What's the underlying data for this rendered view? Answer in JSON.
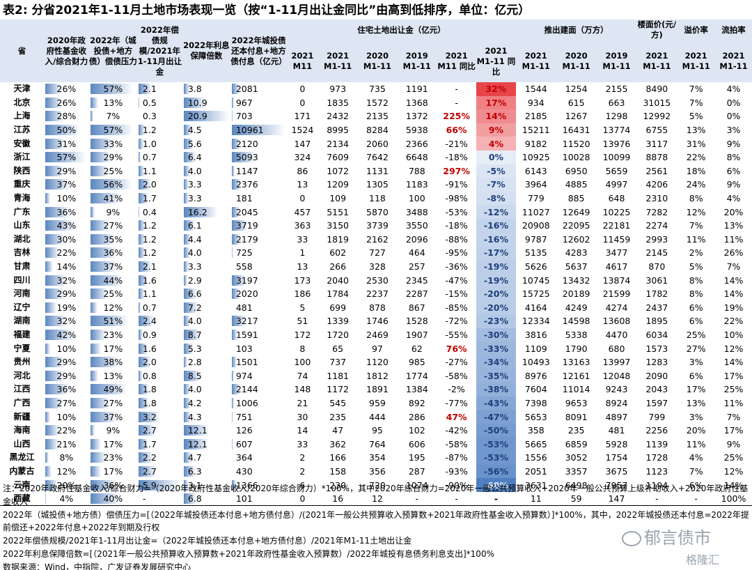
{
  "title": "表2:  分省2021年1-11月土地市场表现一览（按“1-11月出让金同比”由高到低排序，单位：亿元）",
  "headers": {
    "province": "省",
    "fund_ratio": "2020年政府性基金收入/综合财力",
    "debt_pressure": "2022年（城投债+地方债）偿债压力",
    "repay_ratio": "2022年偿债规模/2021年1-11月出让金",
    "interest_cover": "2022年利息保障倍数",
    "repay_amount": "2022年城投债还本付息+地方债付息（亿元）",
    "land_sales_group": "住宅土地出让金（亿元）",
    "launch_group": "推出建面（万方）",
    "floor_price": "楼面价(元/方)",
    "premium_rate": "溢价率",
    "fail_rate": "流拍率",
    "c2021m11": "2021 M11",
    "c2021m1_11": "2021 M1-11",
    "c2020m1_11": "2020 M1-11",
    "c2019m1_11": "2019 M1-11",
    "c_m11_yoy": "2021 M11 同比",
    "c_m1_11_yoy": "2021 M1-11 同比"
  },
  "rows": [
    {
      "p": "天津",
      "a": 26,
      "b": 57,
      "c": "2.1",
      "d": "3.8",
      "e": 2081,
      "f": "0",
      "g": "973",
      "h": "735",
      "i": "1191",
      "j": "-",
      "k": 32,
      "l": "1544",
      "m": "1254",
      "n": "2155",
      "o": "8490",
      "q": "7%",
      "r": "4%"
    },
    {
      "p": "北京",
      "a": 26,
      "b": 13,
      "c": "0.5",
      "d": "10.9",
      "e": 967,
      "f": "0",
      "g": "1835",
      "h": "1572",
      "i": "1368",
      "j": "-",
      "k": 17,
      "l": "934",
      "m": "615",
      "n": "663",
      "o": "31015",
      "q": "7%",
      "r": "0%"
    },
    {
      "p": "上海",
      "a": 28,
      "b": 7,
      "c": "0.3",
      "d": "20.9",
      "e": 703,
      "f": "171",
      "g": "2432",
      "h": "2135",
      "i": "1372",
      "j": "225%",
      "k": 14,
      "l": "2185",
      "m": "1267",
      "n": "1298",
      "o": "12992",
      "q": "5%",
      "r": "0%"
    },
    {
      "p": "江苏",
      "a": 50,
      "b": 57,
      "c": "1.2",
      "d": "4.5",
      "e": 10961,
      "f": "1524",
      "g": "8995",
      "h": "8284",
      "i": "5938",
      "j": "66%",
      "k": 9,
      "l": "15211",
      "m": "16431",
      "n": "13774",
      "o": "6755",
      "q": "13%",
      "r": "3%"
    },
    {
      "p": "安徽",
      "a": 31,
      "b": 33,
      "c": "1.0",
      "d": "5.6",
      "e": 2120,
      "f": "147",
      "g": "2134",
      "h": "2060",
      "i": "2366",
      "j": "-21%",
      "k": 4,
      "l": "9182",
      "m": "11520",
      "n": "13976",
      "o": "3117",
      "q": "31%",
      "r": "9%"
    },
    {
      "p": "浙江",
      "a": 57,
      "b": 29,
      "c": "0.7",
      "d": "6.4",
      "e": 5093,
      "f": "324",
      "g": "7609",
      "h": "7642",
      "i": "6648",
      "j": "-18%",
      "k": 0,
      "l": "10925",
      "m": "10028",
      "n": "10099",
      "o": "8878",
      "q": "22%",
      "r": "8%"
    },
    {
      "p": "陕西",
      "a": 29,
      "b": 25,
      "c": "1.1",
      "d": "4.0",
      "e": 1147,
      "f": "86",
      "g": "1072",
      "h": "1131",
      "i": "788",
      "j": "297%",
      "k": -5,
      "l": "6143",
      "m": "6950",
      "n": "5659",
      "o": "2561",
      "q": "18%",
      "r": "6%"
    },
    {
      "p": "重庆",
      "a": 37,
      "b": 56,
      "c": "2.0",
      "d": "3.3",
      "e": 2376,
      "f": "13",
      "g": "1209",
      "h": "1305",
      "i": "1183",
      "j": "-91%",
      "k": -7,
      "l": "3964",
      "m": "4885",
      "n": "4997",
      "o": "4206",
      "q": "24%",
      "r": "9%"
    },
    {
      "p": "青海",
      "a": 10,
      "b": 41,
      "c": "1.7",
      "d": "3.3",
      "e": 181,
      "f": "0",
      "g": "109",
      "h": "118",
      "i": "100",
      "j": "-98%",
      "k": -8,
      "l": "779",
      "m": "885",
      "n": "648",
      "o": "2310",
      "q": "8%",
      "r": "4%"
    },
    {
      "p": "广东",
      "a": 36,
      "b": 9,
      "c": "0.4",
      "d": "16.2",
      "e": 2045,
      "f": "457",
      "g": "5151",
      "h": "5870",
      "i": "3488",
      "j": "-53%",
      "k": -12,
      "l": "11027",
      "m": "12649",
      "n": "10225",
      "o": "7282",
      "q": "12%",
      "r": "20%"
    },
    {
      "p": "山东",
      "a": 43,
      "b": 27,
      "c": "1.2",
      "d": "6.1",
      "e": 3719,
      "f": "363",
      "g": "3150",
      "h": "3739",
      "i": "3550",
      "j": "-18%",
      "k": -16,
      "l": "20908",
      "m": "22095",
      "n": "22181",
      "o": "2274",
      "q": "7%",
      "r": "13%"
    },
    {
      "p": "湖北",
      "a": 30,
      "b": 35,
      "c": "1.2",
      "d": "4.4",
      "e": 2179,
      "f": "33",
      "g": "1819",
      "h": "2162",
      "i": "2096",
      "j": "-88%",
      "k": -16,
      "l": "9787",
      "m": "12602",
      "n": "11459",
      "o": "2993",
      "q": "11%",
      "r": "11%"
    },
    {
      "p": "吉林",
      "a": 22,
      "b": 36,
      "c": "1.2",
      "d": "4.0",
      "e": 725,
      "f": "1",
      "g": "602",
      "h": "727",
      "i": "464",
      "j": "-95%",
      "k": -17,
      "l": "5135",
      "m": "4283",
      "n": "3477",
      "o": "2145",
      "q": "2%",
      "r": "26%"
    },
    {
      "p": "甘肃",
      "a": 14,
      "b": 37,
      "c": "2.1",
      "d": "3.3",
      "e": 558,
      "f": "13",
      "g": "266",
      "h": "328",
      "i": "257",
      "j": "-36%",
      "k": -19,
      "l": "5626",
      "m": "5637",
      "n": "4617",
      "o": "870",
      "q": "5%",
      "r": "7%"
    },
    {
      "p": "四川",
      "a": 32,
      "b": 44,
      "c": "1.6",
      "d": "2.9",
      "e": 3197,
      "f": "173",
      "g": "2040",
      "h": "2530",
      "i": "2345",
      "j": "-47%",
      "k": -19,
      "l": "10745",
      "m": "13432",
      "n": "13874",
      "o": "3061",
      "q": "8%",
      "r": "14%"
    },
    {
      "p": "河南",
      "a": 29,
      "b": 25,
      "c": "1.1",
      "d": "6.6",
      "e": 2020,
      "f": "186",
      "g": "1784",
      "h": "2237",
      "i": "2287",
      "j": "-15%",
      "k": -20,
      "l": "15725",
      "m": "20189",
      "n": "21599",
      "o": "1782",
      "q": "8%",
      "r": "14%"
    },
    {
      "p": "辽宁",
      "a": 19,
      "b": 12,
      "c": "0.7",
      "d": "7.2",
      "e": 481,
      "f": "5",
      "g": "699",
      "h": "878",
      "i": "867",
      "j": "-85%",
      "k": -20,
      "l": "4164",
      "m": "4249",
      "n": "4274",
      "o": "2437",
      "q": "6%",
      "r": "19%"
    },
    {
      "p": "湖南",
      "a": 32,
      "b": 51,
      "c": "2.4",
      "d": "4.0",
      "e": 3217,
      "f": "51",
      "g": "1339",
      "h": "1746",
      "i": "1528",
      "j": "-72%",
      "k": -23,
      "l": "12334",
      "m": "14598",
      "n": "13608",
      "o": "1895",
      "q": "6%",
      "r": "22%"
    },
    {
      "p": "福建",
      "a": 42,
      "b": 23,
      "c": "0.9",
      "d": "8.7",
      "e": 1591,
      "f": "172",
      "g": "1720",
      "h": "2469",
      "i": "1907",
      "j": "-55%",
      "k": -30,
      "l": "3816",
      "m": "5338",
      "n": "4470",
      "o": "6034",
      "q": "25%",
      "r": "10%"
    },
    {
      "p": "宁夏",
      "a": 10,
      "b": 17,
      "c": "1.6",
      "d": "5.3",
      "e": 103,
      "f": "8",
      "g": "65",
      "h": "97",
      "i": "62",
      "j": "76%",
      "k": -33,
      "l": "1109",
      "m": "1790",
      "n": "680",
      "o": "1573",
      "q": "27%",
      "r": "12%"
    },
    {
      "p": "贵州",
      "a": 29,
      "b": 38,
      "c": "2.0",
      "d": "2.8",
      "e": 1501,
      "f": "100",
      "g": "737",
      "h": "1120",
      "i": "985",
      "j": "-27%",
      "k": -34,
      "l": "10493",
      "m": "13163",
      "n": "13997",
      "o": "1283",
      "q": "3%",
      "r": "14%"
    },
    {
      "p": "河北",
      "a": 29,
      "b": 13,
      "c": "0.8",
      "d": "8.5",
      "e": 974,
      "f": "74",
      "g": "1181",
      "h": "1812",
      "i": "1774",
      "j": "-58%",
      "k": -35,
      "l": "8976",
      "m": "12161",
      "n": "12048",
      "o": "2090",
      "q": "6%",
      "r": "17%"
    },
    {
      "p": "江西",
      "a": 36,
      "b": 49,
      "c": "1.8",
      "d": "4.0",
      "e": 2144,
      "f": "148",
      "g": "1172",
      "h": "1891",
      "i": "1384",
      "j": "-2%",
      "k": -38,
      "l": "7604",
      "m": "11014",
      "n": "9243",
      "o": "2043",
      "q": "17%",
      "r": "25%"
    },
    {
      "p": "广西",
      "a": 27,
      "b": 27,
      "c": "1.8",
      "d": "4.2",
      "e": 1006,
      "f": "21",
      "g": "545",
      "h": "959",
      "i": "892",
      "j": "-77%",
      "k": -43,
      "l": "7398",
      "m": "9653",
      "n": "8924",
      "o": "1597",
      "q": "13%",
      "r": "11%"
    },
    {
      "p": "新疆",
      "a": 10,
      "b": 37,
      "c": "3.2",
      "d": "4.3",
      "e": 751,
      "f": "30",
      "g": "235",
      "h": "444",
      "i": "286",
      "j": "47%",
      "k": -47,
      "l": "5653",
      "m": "8091",
      "n": "4897",
      "o": "799",
      "q": "3%",
      "r": "7%"
    },
    {
      "p": "海南",
      "a": 22,
      "b": 9,
      "c": "2.7",
      "d": "12.1",
      "e": 126,
      "f": "14",
      "g": "47",
      "h": "95",
      "i": "102",
      "j": "-42%",
      "k": -50,
      "l": "358",
      "m": "235",
      "n": "481",
      "o": "2256",
      "q": "20%",
      "r": "17%"
    },
    {
      "p": "山西",
      "a": 21,
      "b": 17,
      "c": "1.7",
      "d": "12.1",
      "e": 607,
      "f": "33",
      "g": "362",
      "h": "764",
      "i": "606",
      "j": "-58%",
      "k": -53,
      "l": "5665",
      "m": "6859",
      "n": "5928",
      "o": "1139",
      "q": "11%",
      "r": "9%"
    },
    {
      "p": "黑龙江",
      "a": 8,
      "b": 23,
      "c": "2.2",
      "d": "4.7",
      "e": 364,
      "f": "2",
      "g": "166",
      "h": "354",
      "i": "195",
      "j": "-87%",
      "k": -53,
      "l": "1556",
      "m": "3052",
      "n": "1754",
      "o": "1728",
      "q": "4%",
      "r": "25%"
    },
    {
      "p": "内蒙古",
      "a": 12,
      "b": 17,
      "c": "2.7",
      "d": "6.3",
      "e": 430,
      "f": "2",
      "g": "158",
      "h": "356",
      "i": "287",
      "j": "-93%",
      "k": -56,
      "l": "2051",
      "m": "3357",
      "n": "3675",
      "o": "1123",
      "q": "7%",
      "r": "12%"
    },
    {
      "p": "云南",
      "a": 20,
      "b": 36,
      "c": "5.9",
      "d": "3.1",
      "e": 1366,
      "f": "6",
      "g": "230",
      "h": "720",
      "i": "1074",
      "j": "-90%",
      "k": -68,
      "l": "3631",
      "m": "6498",
      "n": "7957",
      "o": "1194",
      "q": "6%",
      "r": "14%"
    },
    {
      "p": "西藏",
      "a": 4,
      "b": 40,
      "c": "-",
      "d": "6.8",
      "e": 101,
      "f": "0",
      "g": "16",
      "h": "12",
      "i": "-",
      "j": "-",
      "k": null,
      "l": "11",
      "m": "59",
      "n": "147",
      "o": "-",
      "q": "-",
      "r": "100%"
    }
  ],
  "notes": [
    "注：2020年政府性基金收入/综合财力=（2020年政府性基金收入/2020年综合财力）*100%，其中2020年综合财力=2020年一般公共预算收入+2020年一般公共预算上级补助收入+2020年政府性基金收入",
    "2022年（城投债+地方债）偿债压力=[（2022年城投债还本付息+地方债付息）/(2021年一般公共预算收入预算数+2021年政府性基金收入预算数）]*100%，其中，2022年城投债还本付息=2022年提前偿还+2022年付息+2022年到期及行权",
    "2022年偿债规模/2021年1-11月出让金=（2022年城投债还本付息+地方债付息）/2021年M1-11土地出让金",
    "2022年利息保障倍数=[（2021年一般公共预算收入预算数+2021年政府性基金收入预算数）/2022年城投有息债务利息支出]*100%",
    "数据来源：Wind，中指院，广发证券发展研究中心"
  ],
  "watermark": {
    "line1": "郁言债市",
    "line2": "格隆汇"
  },
  "colors": {
    "header_bg": "#dde6f2",
    "bar": "#5b86c0",
    "pos_text": "#c00000",
    "heat_red": "#e8454a",
    "heat_blue": "#4f7fc2"
  }
}
